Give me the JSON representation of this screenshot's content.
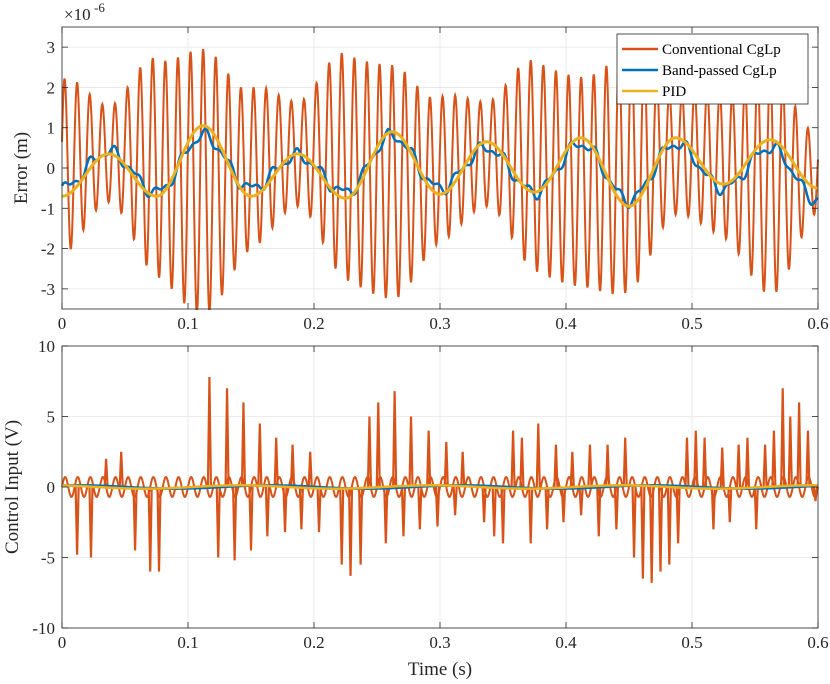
{
  "chart_data": [
    {
      "type": "line",
      "title": "",
      "xlabel": "",
      "ylabel": "Error (m)",
      "exponent_base": "×10",
      "exponent_power": "-6",
      "xlim": [
        0,
        0.6
      ],
      "ylim": [
        -3.5,
        3.5
      ],
      "xticks": [
        "0",
        "0.1",
        "0.2",
        "0.3",
        "0.4",
        "0.5",
        "0.6"
      ],
      "yticks": [
        "-3",
        "-2",
        "-1",
        "0",
        "1",
        "2",
        "3"
      ],
      "grid": true,
      "legend_position": "top-right",
      "series": [
        {
          "name": "Conventional CgLp",
          "color": "#D95319",
          "carrier_hz": 100,
          "x": [
            0,
            0.037,
            0.075,
            0.112,
            0.15,
            0.187,
            0.225,
            0.262,
            0.3,
            0.337,
            0.375,
            0.412,
            0.45,
            0.487,
            0.525,
            0.562,
            0.6
          ],
          "envelope": [
            2.2,
            1.2,
            2.7,
            3.3,
            2.0,
            1.3,
            2.8,
            2.9,
            1.8,
            1.3,
            2.6,
            2.6,
            3.0,
            1.5,
            1.8,
            2.8,
            1.0
          ]
        },
        {
          "name": "Band-passed CgLp",
          "color": "#0072BD",
          "x": [
            0,
            0.037,
            0.075,
            0.112,
            0.15,
            0.187,
            0.225,
            0.262,
            0.3,
            0.337,
            0.375,
            0.412,
            0.45,
            0.487,
            0.525,
            0.562,
            0.6
          ],
          "values": [
            -0.5,
            0.4,
            -0.6,
            0.8,
            -0.5,
            0.3,
            -0.6,
            0.8,
            -0.5,
            0.5,
            -0.6,
            0.6,
            -0.8,
            0.6,
            -0.5,
            0.5,
            -0.8
          ]
        },
        {
          "name": "PID",
          "color": "#EDB120",
          "x": [
            0,
            0.037,
            0.075,
            0.112,
            0.15,
            0.187,
            0.225,
            0.262,
            0.3,
            0.337,
            0.375,
            0.412,
            0.45,
            0.487,
            0.525,
            0.562,
            0.6
          ],
          "values": [
            -0.7,
            0.35,
            -0.7,
            1.05,
            -0.7,
            0.35,
            -0.75,
            0.9,
            -0.65,
            0.65,
            -0.6,
            0.75,
            -0.95,
            0.75,
            -0.4,
            0.7,
            -0.5
          ]
        }
      ]
    },
    {
      "type": "line",
      "title": "",
      "xlabel": "Time (s)",
      "ylabel": "Control Input (V)",
      "xlim": [
        0,
        0.6
      ],
      "ylim": [
        -10,
        10
      ],
      "xticks": [
        "0",
        "0.1",
        "0.2",
        "0.3",
        "0.4",
        "0.5",
        "0.6"
      ],
      "yticks": [
        "-10",
        "-5",
        "0",
        "5",
        "10"
      ],
      "grid": true,
      "series": [
        {
          "name": "Conventional CgLp",
          "color": "#D95319",
          "carrier_hz": 100,
          "spike_x": [
            0.012,
            0.023,
            0.035,
            0.047,
            0.058,
            0.07,
            0.077,
            0.117,
            0.124,
            0.131,
            0.137,
            0.144,
            0.15,
            0.157,
            0.163,
            0.17,
            0.177,
            0.183,
            0.19,
            0.197,
            0.204,
            0.222,
            0.229,
            0.237,
            0.244,
            0.251,
            0.257,
            0.264,
            0.271,
            0.277,
            0.284,
            0.291,
            0.298,
            0.305,
            0.312,
            0.318,
            0.335,
            0.343,
            0.35,
            0.358,
            0.365,
            0.372,
            0.378,
            0.385,
            0.392,
            0.398,
            0.405,
            0.412,
            0.419,
            0.426,
            0.433,
            0.44,
            0.447,
            0.454,
            0.461,
            0.468,
            0.475,
            0.482,
            0.489,
            0.496,
            0.503,
            0.51,
            0.517,
            0.524,
            0.53,
            0.537,
            0.544,
            0.551,
            0.558,
            0.565,
            0.572,
            0.578,
            0.585,
            0.592,
            0.598
          ],
          "spike_y": [
            -4.8,
            -5.0,
            2.0,
            2.5,
            -4.5,
            -6.0,
            -6.0,
            7.8,
            -5.0,
            7.0,
            -5.2,
            6.0,
            -4.5,
            4.5,
            -3.5,
            3.5,
            -3.2,
            3.0,
            -3.0,
            2.5,
            -3.2,
            -5.5,
            -6.3,
            -5.5,
            5.0,
            6.0,
            -4.0,
            6.8,
            -3.5,
            5.0,
            -3.0,
            4.0,
            -2.8,
            3.2,
            -2.0,
            2.5,
            -2.5,
            -3.5,
            -4.0,
            4.0,
            3.5,
            -4.0,
            4.5,
            -3.0,
            3.0,
            -2.5,
            2.5,
            -2.0,
            3.0,
            -3.5,
            3.0,
            -3.0,
            3.5,
            -5.0,
            -6.5,
            -6.8,
            -6.0,
            -5.5,
            -4.0,
            3.5,
            4.0,
            3.5,
            -3.0,
            2.8,
            -2.5,
            3.0,
            3.5,
            -3.0,
            3.0,
            4.0,
            7.0,
            5.0,
            6.0,
            4.0,
            -1.0
          ]
        },
        {
          "name": "Band-passed CgLp",
          "color": "#0072BD",
          "values_range": [
            -0.2,
            0.2
          ]
        },
        {
          "name": "PID",
          "color": "#EDB120",
          "values_range": [
            -0.2,
            0.2
          ]
        }
      ]
    }
  ]
}
